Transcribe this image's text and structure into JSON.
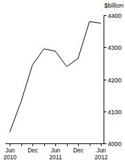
{
  "chart_data": {
    "type": "line",
    "y_label": "$billion",
    "categories": [
      "Jun 2010",
      null,
      "Dec",
      null,
      "Jun 2011",
      null,
      "Dec",
      null,
      "Jun 2012"
    ],
    "values": [
      4035,
      4130,
      4245,
      4295,
      4288,
      4240,
      4265,
      4380,
      4375
    ],
    "color": "#000000",
    "ylim": [
      4000,
      4400
    ],
    "yticks": [
      4000,
      4100,
      4200,
      4300,
      4400
    ],
    "grid": false
  }
}
